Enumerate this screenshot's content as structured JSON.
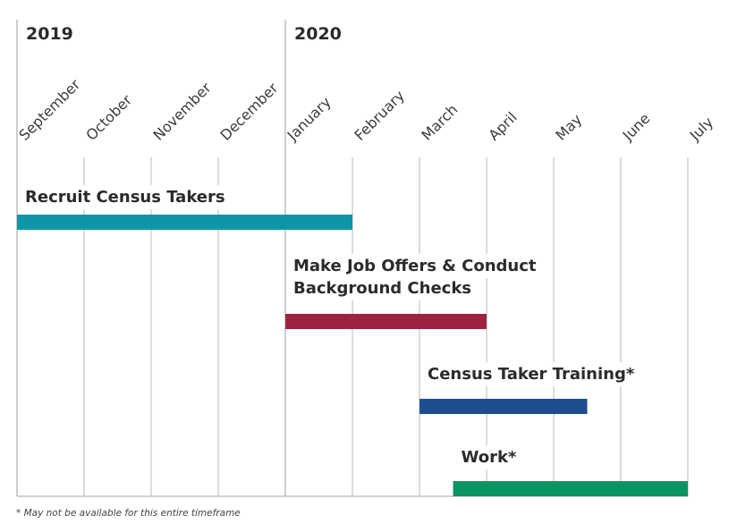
{
  "chart_data": {
    "type": "gantt",
    "years": [
      {
        "label": "2019",
        "start_month": "September"
      },
      {
        "label": "2020",
        "start_month": "January"
      }
    ],
    "months": [
      "September",
      "October",
      "November",
      "December",
      "January",
      "February",
      "March",
      "April",
      "May",
      "June",
      "July"
    ],
    "tasks": [
      {
        "name": "Recruit Census Takers",
        "lines": [
          "Recruit Census Takers"
        ],
        "start": 0,
        "end": 5,
        "color": "#0f96a6"
      },
      {
        "name": "Make Job Offers & Conduct Background Checks",
        "lines": [
          "Make Job Offers & Conduct",
          "Background Checks"
        ],
        "start": 4,
        "end": 7,
        "color": "#9e2340"
      },
      {
        "name": "Census Taker Training*",
        "lines": [
          "Census Taker Training*"
        ],
        "start": 6,
        "end": 8.5,
        "color": "#1f4e8f"
      },
      {
        "name": "Work*",
        "lines": [
          "Work*"
        ],
        "start": 6.5,
        "end": 10,
        "color": "#0a9463"
      }
    ],
    "footnote": "* May not be available for this entire timeframe",
    "grid": true
  }
}
